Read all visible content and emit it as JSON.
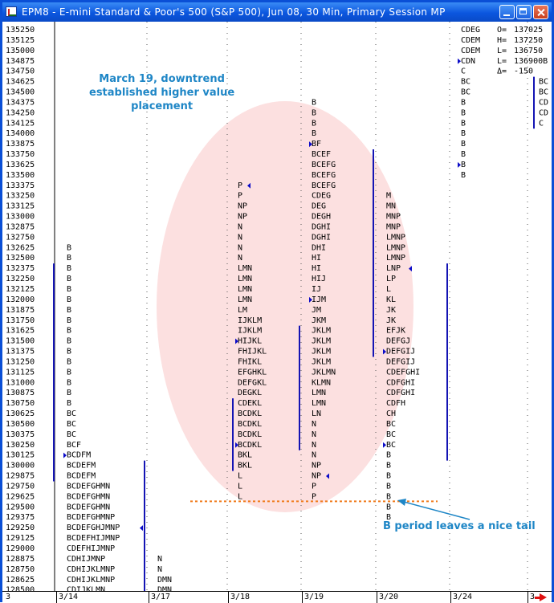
{
  "window": {
    "title": "EPM8 - E-mini Standard & Poor's 500 (S&P 500), Jun 08, 30 Min, Primary Session MP"
  },
  "colors": {
    "titlebar": "#0b56df",
    "value_area_line": "#1414b4",
    "ellipse": "#f9c7c7",
    "annotation": "#1e86c6",
    "tail_line": "#f07a1a",
    "marker": "#0c0cc8",
    "nav_arrow": "#e01010"
  },
  "annotations": {
    "top": [
      "March 19, downtrend",
      "established higher value",
      "placement"
    ],
    "bottom": "B period leaves a nice tail"
  },
  "chart_data": {
    "type": "table",
    "description_free": true,
    "prices": [
      "135250",
      "135125",
      "135000",
      "134875",
      "134750",
      "134625",
      "134500",
      "134375",
      "134250",
      "134125",
      "134000",
      "133875",
      "133750",
      "133625",
      "133500",
      "133375",
      "133250",
      "133125",
      "133000",
      "132875",
      "132750",
      "132625",
      "132500",
      "132375",
      "132250",
      "132125",
      "132000",
      "131875",
      "131750",
      "131625",
      "131500",
      "131375",
      "131250",
      "131125",
      "131000",
      "130875",
      "130750",
      "130625",
      "130500",
      "130375",
      "130250",
      "130125",
      "130000",
      "129875",
      "129750",
      "129625",
      "129500",
      "129375",
      "129250",
      "129125",
      "129000",
      "128875",
      "128750",
      "128625",
      "128500"
    ],
    "dates": [
      "3",
      "3/14",
      "3/17",
      "3/18",
      "3/19",
      "3/20",
      "3/24",
      "3"
    ],
    "sessions": [
      {
        "date": "3/14",
        "profile": {
          "132625": "B",
          "132500": "B",
          "132375": "B",
          "132250": "B",
          "132125": "B",
          "132000": "B",
          "131875": "B",
          "131750": "B",
          "131625": "B",
          "131500": "B",
          "131375": "B",
          "131250": "B",
          "131125": "B",
          "131000": "B",
          "130875": "B",
          "130750": "B",
          "130625": "BC",
          "130500": "BC",
          "130375": "BC",
          "130250": "BCF",
          "130125": "BCDFM",
          "130000": "BCDEFM",
          "129875": "BCDEFM",
          "129750": "BCDEFGHMN",
          "129625": "BCDEFGHMN",
          "129500": "BCDEFGHMN",
          "129375": "BCDEFGHMNP",
          "129250": "BCDEFGHJMNP",
          "129125": "BCDEFHIJMNP",
          "129000": "CDEFHIJMNP",
          "128875": "CDHIJMNP",
          "128750": "CDHIJKLMNP",
          "128625": "CDHIJKLMNP",
          "128500": "CDIJKLMN"
        }
      },
      {
        "date": "3/17",
        "profile": {
          "128875": "N",
          "128750": "N",
          "128625": "DMN",
          "128500": "DMN"
        }
      },
      {
        "date": "3/18",
        "profile": {
          "133375": "P",
          "133250": "P",
          "133125": "NP",
          "133000": "NP",
          "132875": "N",
          "132750": "N",
          "132625": "N",
          "132500": "N",
          "132375": "LMN",
          "132250": "LMN",
          "132125": "LMN",
          "132000": "LMN",
          "131875": "LM",
          "131750": "IJKLM",
          "131625": "IJKLM",
          "131500": "HIJKL",
          "131375": "FHIJKL",
          "131250": "FHIKL",
          "131125": "EFGHKL",
          "131000": "DEFGKL",
          "130875": "DEGKL",
          "130750": "CDEKL",
          "130625": "BCDKL",
          "130500": "BCDKL",
          "130375": "BCDKL",
          "130250": "BCDKL",
          "130125": "BKL",
          "130000": "BKL",
          "129875": "L",
          "129750": "L",
          "129625": "L"
        }
      },
      {
        "date": "3/19",
        "profile": {
          "134375": "B",
          "134250": "B",
          "134125": "B",
          "134000": "B",
          "133875": "BF",
          "133750": "BCEF",
          "133625": "BCEFG",
          "133500": "BCEFG",
          "133375": "BCEFG",
          "133250": "CDEG",
          "133125": "DEG",
          "133000": "DEGH",
          "132875": "DGHI",
          "132750": "DGHI",
          "132625": "DHI",
          "132500": "HI",
          "132375": "HI",
          "132250": "HIJ",
          "132125": "IJ",
          "132000": "IJM",
          "131875": "JM",
          "131750": "JKM",
          "131625": "JKLM",
          "131500": "JKLM",
          "131375": "JKLM",
          "131250": "JKLM",
          "131125": "JKLMN",
          "131000": "KLMN",
          "130875": "LMN",
          "130750": "LMN",
          "130625": "LN",
          "130500": "N",
          "130375": "N",
          "130250": "N",
          "130125": "N",
          "130000": "NP",
          "129875": "NP",
          "129750": "P",
          "129625": "P"
        }
      },
      {
        "date": "3/20",
        "profile": {
          "133250": "M",
          "133125": "MN",
          "133000": "MNP",
          "132875": "MNP",
          "132750": "LMNP",
          "132625": "LMNP",
          "132500": "LMNP",
          "132375": "LNP",
          "132250": "LP",
          "132125": "L",
          "132000": "KL",
          "131875": "JK",
          "131750": "JK",
          "131625": "EFJK",
          "131500": "DEFGJ",
          "131375": "DEFGIJ",
          "131250": "DEFGIJ",
          "131125": "CDEFGHI",
          "131000": "CDFGHI",
          "130875": "CDFGHI",
          "130750": "CDFH",
          "130625": "CH",
          "130500": "BC",
          "130375": "BC",
          "130250": "BC",
          "130125": "B",
          "130000": "B",
          "129875": "B",
          "129750": "B",
          "129625": "B",
          "129500": "B",
          "129375": "B"
        }
      },
      {
        "date": "3/24",
        "profile": {
          "135250": "CDEG",
          "135125": "CDEM",
          "135000": "CDEM",
          "134875": "CDN",
          "134750": "C",
          "134625": "BC",
          "134500": "BC",
          "134375": "B",
          "134250": "B",
          "134125": "B",
          "134000": "B",
          "133875": "B",
          "133750": "B",
          "133625": "B",
          "133500": "B"
        }
      },
      {
        "date": "3",
        "profile": {
          "134625": "BC",
          "134500": "BC",
          "134375": "CD",
          "134250": "CD",
          "134125": "C"
        }
      }
    ],
    "stats": [
      {
        "label": "O=",
        "value": "137025"
      },
      {
        "label": "H=",
        "value": "137250"
      },
      {
        "label": "L=",
        "value": "136750"
      },
      {
        "label": "L=",
        "value": "136900B"
      },
      {
        "label": "Δ=",
        "value": "-150"
      }
    ]
  }
}
